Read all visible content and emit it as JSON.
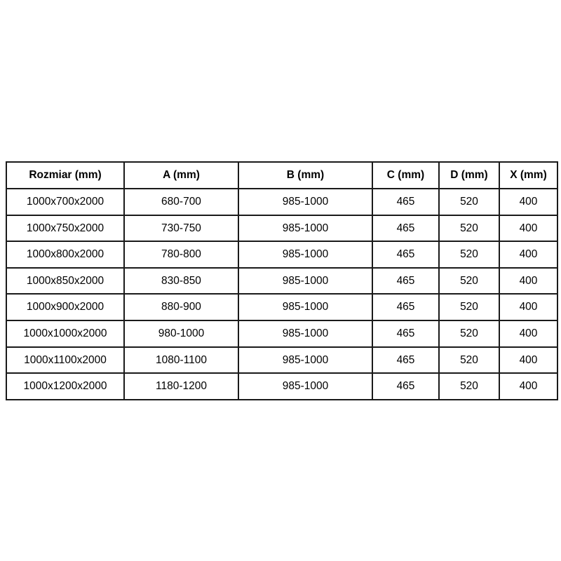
{
  "page": {
    "background_color": "#ffffff",
    "text_color": "#000000",
    "border_color": "#1a1a1a"
  },
  "chart_data": {
    "type": "table",
    "title": "",
    "columns": [
      "Rozmiar (mm)",
      "A (mm)",
      "B (mm)",
      "C (mm)",
      "D (mm)",
      "X (mm)"
    ],
    "rows": [
      [
        "1000x700x2000",
        "680-700",
        "985-1000",
        "465",
        "520",
        "400"
      ],
      [
        "1000x750x2000",
        "730-750",
        "985-1000",
        "465",
        "520",
        "400"
      ],
      [
        "1000x800x2000",
        "780-800",
        "985-1000",
        "465",
        "520",
        "400"
      ],
      [
        "1000x850x2000",
        "830-850",
        "985-1000",
        "465",
        "520",
        "400"
      ],
      [
        "1000x900x2000",
        "880-900",
        "985-1000",
        "465",
        "520",
        "400"
      ],
      [
        "1000x1000x2000",
        "980-1000",
        "985-1000",
        "465",
        "520",
        "400"
      ],
      [
        "1000x1100x2000",
        "1080-1100",
        "985-1000",
        "465",
        "520",
        "400"
      ],
      [
        "1000x1200x2000",
        "1180-1200",
        "985-1000",
        "465",
        "520",
        "400"
      ]
    ]
  }
}
